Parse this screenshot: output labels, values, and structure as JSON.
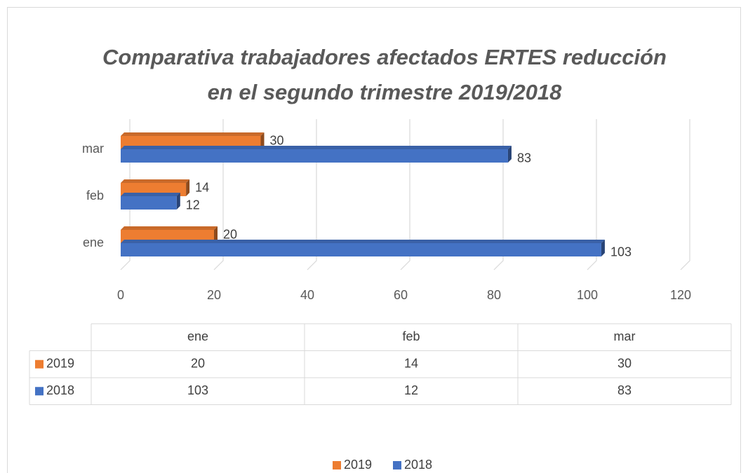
{
  "chart_data": {
    "type": "bar",
    "orientation": "horizontal",
    "title": [
      "Comparativa trabajadores afectados  ERTES reducción",
      "en el segundo trimestre 2019/2018"
    ],
    "categories": [
      "ene",
      "feb",
      "mar"
    ],
    "series": [
      {
        "name": "2019",
        "color": "#ED7D31",
        "values": [
          20,
          14,
          30
        ]
      },
      {
        "name": "2018",
        "color": "#4472C4",
        "values": [
          103,
          12,
          83
        ]
      }
    ],
    "xlim": [
      0,
      120
    ],
    "xticks": [
      0,
      20,
      40,
      60,
      80,
      100,
      120
    ],
    "grid": true,
    "data_table": true,
    "legend": "bottom"
  }
}
